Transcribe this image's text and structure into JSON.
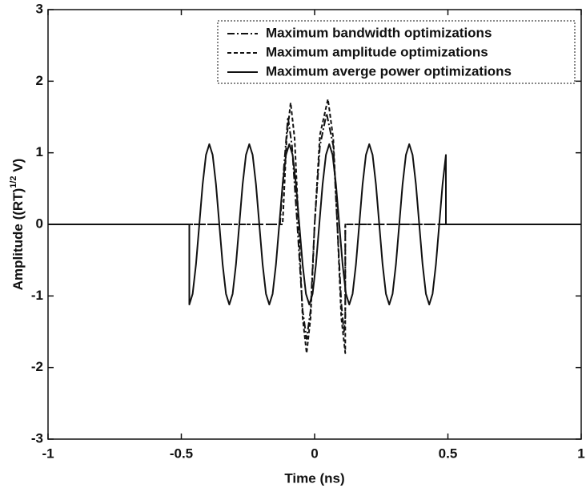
{
  "chart_data": {
    "type": "line",
    "xlabel": "Time (ns)",
    "ylabel": [
      "Amplitude ((RT)",
      "1/2",
      " V)"
    ],
    "xlim": [
      -1,
      1
    ],
    "xticks": [
      -1,
      -0.5,
      0,
      0.5,
      1
    ],
    "ylim": [
      -3,
      3
    ],
    "yticks": [
      -3,
      -2,
      -1,
      0,
      1,
      2,
      3
    ],
    "legend": "upper right",
    "color": "#111111",
    "series": [
      {
        "name": "Maximum bandwidth optimizations",
        "dash": "9,3,2,3",
        "x": [
          -1,
          -0.13,
          -0.115,
          -0.1,
          -0.085,
          -0.065,
          -0.045,
          -0.03,
          -0.015,
          0,
          0.02,
          0.045,
          0.07,
          0.085,
          0.1,
          0.11,
          0.115,
          0.115,
          1
        ],
        "values": [
          0,
          0,
          0.8,
          1.5,
          1.1,
          0,
          -1.2,
          -1.6,
          -1.2,
          0,
          1.1,
          1.55,
          1.1,
          0,
          -1.1,
          -1.5,
          -1.3,
          0,
          0
        ]
      },
      {
        "name": "Maximum amplitude optimizations",
        "dash": "5,3",
        "x": [
          -1,
          -0.12,
          -0.105,
          -0.09,
          -0.075,
          -0.06,
          -0.045,
          -0.03,
          -0.015,
          0,
          0.02,
          0.05,
          0.07,
          0.085,
          0.1,
          0.115,
          0.115,
          1
        ],
        "values": [
          0,
          0,
          1.2,
          1.7,
          1.2,
          0,
          -1.3,
          -1.8,
          -1.3,
          0,
          1.25,
          1.75,
          1.2,
          0,
          -1.3,
          -1.8,
          0,
          0
        ]
      },
      {
        "name": "Maximum averge power optimizations",
        "dash": "none",
        "x": [
          -1,
          -0.47,
          -0.47,
          -0.4575,
          -0.445,
          -0.4325,
          -0.42,
          -0.4075,
          -0.395,
          -0.3825,
          -0.37,
          -0.3575,
          -0.345,
          -0.3325,
          -0.32,
          -0.3075,
          -0.295,
          -0.2825,
          -0.27,
          -0.2575,
          -0.245,
          -0.2325,
          -0.22,
          -0.2075,
          -0.195,
          -0.1825,
          -0.17,
          -0.1575,
          -0.145,
          -0.1325,
          -0.12,
          -0.1075,
          -0.095,
          -0.0825,
          -0.07,
          -0.0575,
          -0.045,
          -0.0325,
          -0.02,
          -0.0075,
          0.005,
          0.0175,
          0.03,
          0.0425,
          0.055,
          0.0675,
          0.08,
          0.0925,
          0.105,
          0.1175,
          0.13,
          0.1425,
          0.155,
          0.1675,
          0.18,
          0.1925,
          0.205,
          0.2175,
          0.23,
          0.2425,
          0.255,
          0.2675,
          0.28,
          0.2925,
          0.305,
          0.3175,
          0.33,
          0.3425,
          0.355,
          0.3675,
          0.38,
          0.3925,
          0.405,
          0.4175,
          0.43,
          0.4425,
          0.455,
          0.4675,
          0.48,
          0.4925,
          0.4925,
          1
        ],
        "values": [
          0,
          0,
          -1.12,
          -0.97,
          -0.56,
          0,
          0.56,
          0.97,
          1.12,
          0.97,
          0.56,
          0,
          -0.56,
          -0.97,
          -1.12,
          -0.97,
          -0.56,
          0,
          0.56,
          0.97,
          1.12,
          0.97,
          0.56,
          0,
          -0.56,
          -0.97,
          -1.12,
          -0.97,
          -0.56,
          0,
          0.56,
          0.97,
          1.12,
          0.97,
          0.56,
          0,
          -0.56,
          -0.97,
          -1.12,
          -0.97,
          -0.56,
          0,
          0.56,
          0.97,
          1.12,
          0.97,
          0.56,
          0,
          -0.56,
          -0.97,
          -1.12,
          -0.97,
          -0.56,
          0,
          0.56,
          0.97,
          1.12,
          0.97,
          0.56,
          0,
          -0.56,
          -0.97,
          -1.12,
          -0.97,
          -0.56,
          0,
          0.56,
          0.97,
          1.12,
          0.97,
          0.56,
          0,
          -0.56,
          -0.97,
          -1.12,
          -0.97,
          -0.56,
          0,
          0.56,
          0.97,
          0,
          0
        ]
      }
    ]
  }
}
